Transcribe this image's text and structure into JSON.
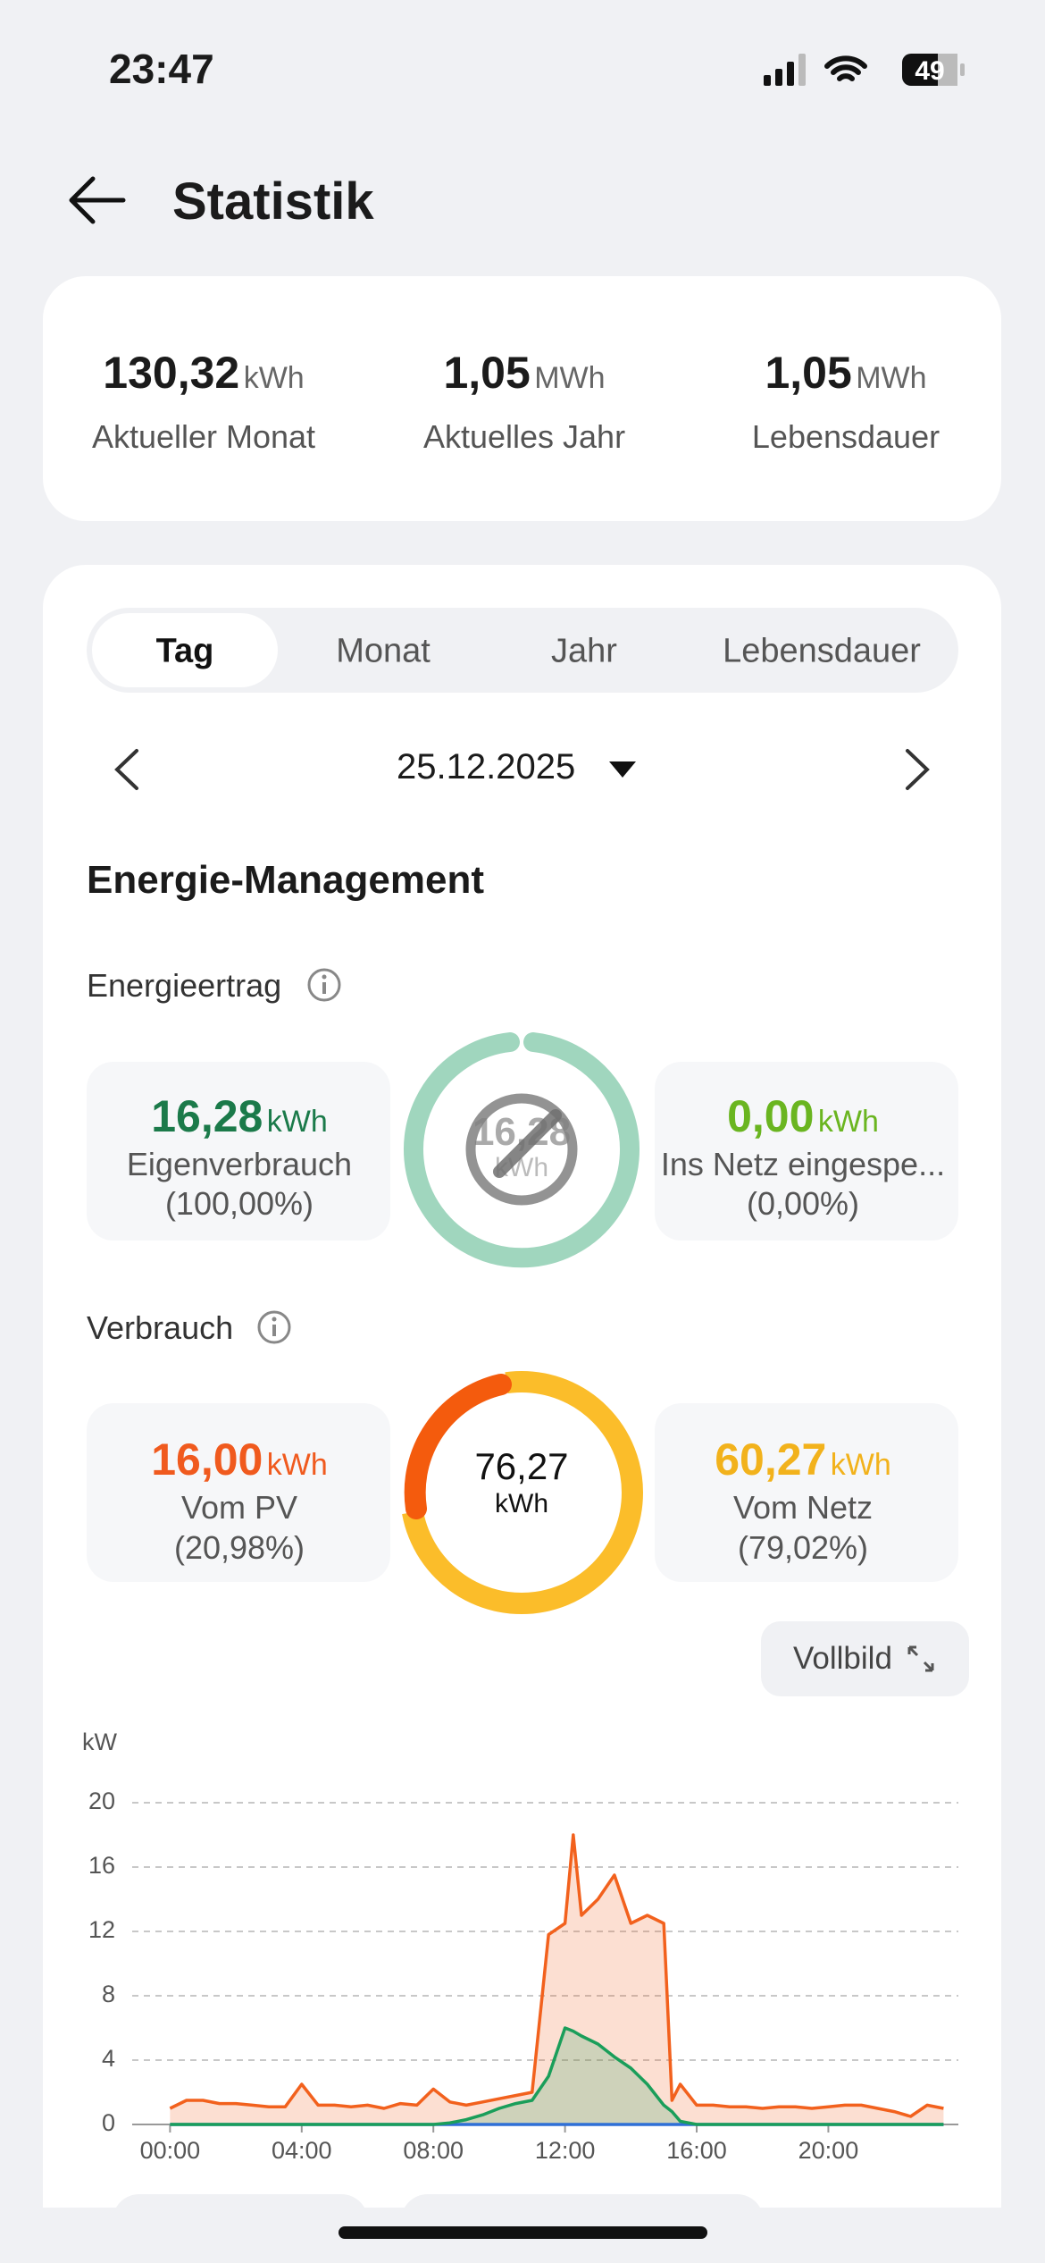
{
  "status_bar": {
    "time": "23:47",
    "battery": "49"
  },
  "header": {
    "title": "Statistik"
  },
  "summary": [
    {
      "value": "130,32",
      "unit": "kWh",
      "label": "Aktueller Monat"
    },
    {
      "value": "1,05",
      "unit": "MWh",
      "label": "Aktuelles Jahr"
    },
    {
      "value": "1,05",
      "unit": "MWh",
      "label": "Lebensdauer"
    }
  ],
  "tabs": [
    "Tag",
    "Monat",
    "Jahr",
    "Lebensdauer"
  ],
  "date": "25.12.2025",
  "section_title": "Energie-Management",
  "yield": {
    "title": "Energieertrag",
    "center_value": "16,28",
    "center_unit": "kWh",
    "left": {
      "value": "16,28",
      "unit": "kWh",
      "label": "Eigenverbrauch",
      "percent": "(100,00%)"
    },
    "right": {
      "value": "0,00",
      "unit": "kWh",
      "label": "Ins Netz eingespe...",
      "percent": "(0,00%)"
    }
  },
  "consumption": {
    "title": "Verbrauch",
    "center_value": "76,27",
    "center_unit": "kWh",
    "left": {
      "value": "16,00",
      "unit": "kWh",
      "label": "Vom PV",
      "percent": "(20,98%)"
    },
    "right": {
      "value": "60,27",
      "unit": "kWh",
      "label": "Vom Netz",
      "percent": "(79,02%)"
    }
  },
  "fullscreen_button": "Vollbild",
  "chart_data": {
    "type": "line",
    "y_label": "kW",
    "x": [
      0,
      0.5,
      1,
      1.5,
      2,
      2.5,
      3,
      3.5,
      4,
      4.5,
      5,
      5.5,
      6,
      6.5,
      7,
      7.5,
      8,
      8.5,
      9,
      9.5,
      10,
      10.5,
      11,
      11.5,
      12,
      12.25,
      12.5,
      13,
      13.5,
      14,
      14.5,
      15,
      15.25,
      15.5,
      16,
      16.5,
      17,
      17.5,
      18,
      18.5,
      19,
      19.5,
      20,
      20.5,
      21,
      21.5,
      22,
      22.5,
      23,
      23.5
    ],
    "series": [
      {
        "color": "#f2611d",
        "values": [
          1.0,
          1.5,
          1.5,
          1.3,
          1.3,
          1.2,
          1.1,
          1.1,
          2.5,
          1.2,
          1.2,
          1.1,
          1.2,
          1.0,
          1.3,
          1.2,
          2.2,
          1.4,
          1.2,
          1.4,
          1.6,
          1.8,
          2.0,
          11.8,
          12.5,
          18.0,
          13.0,
          14.0,
          15.5,
          12.5,
          13.0,
          12.5,
          1.5,
          2.5,
          1.2,
          1.2,
          1.1,
          1.1,
          1.0,
          1.1,
          1.1,
          1.0,
          1.1,
          1.2,
          1.2,
          1.0,
          0.8,
          0.5,
          1.2,
          1.0
        ]
      },
      {
        "color": "#1a9e5a",
        "values": [
          0,
          0,
          0,
          0,
          0,
          0,
          0,
          0,
          0,
          0,
          0,
          0,
          0,
          0,
          0,
          0,
          0,
          0.1,
          0.3,
          0.6,
          1.0,
          1.3,
          1.5,
          3.0,
          6.0,
          5.8,
          5.5,
          5.0,
          4.2,
          3.5,
          2.5,
          1.2,
          0.8,
          0.2,
          0,
          0,
          0,
          0,
          0,
          0,
          0,
          0,
          0,
          0,
          0,
          0,
          0,
          0,
          0,
          0
        ]
      },
      {
        "color": "#2f6fd6",
        "values": [
          0,
          0,
          0,
          0,
          0,
          0,
          0,
          0,
          0,
          0,
          0,
          0,
          0,
          0,
          0,
          0,
          0,
          0,
          0,
          0,
          0,
          0,
          0,
          0,
          0,
          0,
          0,
          0,
          0,
          0,
          0,
          0,
          0,
          0,
          0,
          0,
          0,
          0,
          0,
          0,
          0,
          0,
          0,
          0,
          0,
          0,
          0,
          0,
          0,
          0
        ]
      }
    ],
    "xlim": [
      -1.15,
      23.95
    ],
    "xticks": [
      {
        "value": 0,
        "label": "00:00"
      },
      {
        "value": 4,
        "label": "04:00"
      },
      {
        "value": 8,
        "label": "08:00"
      },
      {
        "value": 12,
        "label": "12:00"
      },
      {
        "value": 16,
        "label": "16:00"
      },
      {
        "value": 20,
        "label": "20:00"
      }
    ],
    "ylim": [
      0,
      20
    ],
    "yticks": [
      0,
      4,
      8,
      12,
      16,
      20
    ],
    "grid": true
  }
}
